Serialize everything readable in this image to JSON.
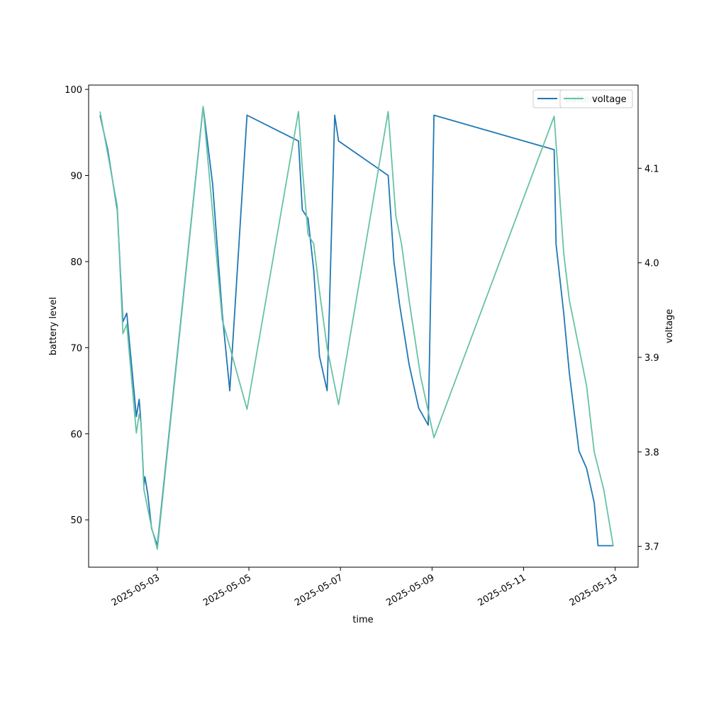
{
  "chart_data": {
    "type": "line",
    "xlabel": "time",
    "ylabel": "battery level",
    "y2label": "voltage",
    "xlim": [
      "2025-05-01T12:00",
      "2025-05-13T12:00"
    ],
    "ylim": [
      44.5,
      100.5
    ],
    "y2lim": [
      3.678,
      4.188
    ],
    "x_ticks": [
      "2025-05-03",
      "2025-05-05",
      "2025-05-07",
      "2025-05-09",
      "2025-05-11",
      "2025-05-13"
    ],
    "y_ticks": [
      50,
      60,
      70,
      80,
      90,
      100
    ],
    "y2_ticks": [
      3.7,
      3.8,
      3.9,
      4.0,
      4.1
    ],
    "y2_tick_labels": [
      "3.7",
      "3.8",
      "3.9",
      "4.0",
      "4.1"
    ],
    "grid": false,
    "legend_position": "top-right",
    "colors": {
      "battery": "#1f77b4",
      "voltage": "#66c2a5"
    },
    "series": [
      {
        "name": "battery",
        "axis": "left",
        "color": "#1f77b4",
        "x": [
          "2025-05-01T18:00",
          "2025-05-01T22:00",
          "2025-05-02T03:00",
          "2025-05-02T06:00",
          "2025-05-02T08:00",
          "2025-05-02T13:00",
          "2025-05-02T14:30",
          "2025-05-02T15:30",
          "2025-05-02T17:00",
          "2025-05-02T17:30",
          "2025-05-02T19:00",
          "2025-05-02T21:00",
          "2025-05-03T00:00",
          "2025-05-04T00:00",
          "2025-05-04T05:00",
          "2025-05-04T10:00",
          "2025-05-04T14:00",
          "2025-05-04T23:00",
          "2025-05-06T02:00",
          "2025-05-06T04:00",
          "2025-05-06T07:00",
          "2025-05-06T10:00",
          "2025-05-06T13:00",
          "2025-05-06T17:00",
          "2025-05-06T21:00",
          "2025-05-06T23:00",
          "2025-05-08T01:00",
          "2025-05-08T04:00",
          "2025-05-08T07:00",
          "2025-05-08T12:00",
          "2025-05-08T17:00",
          "2025-05-08T22:00",
          "2025-05-09T01:00",
          "2025-05-11T16:00",
          "2025-05-11T17:00",
          "2025-05-11T21:00",
          "2025-05-12T00:00",
          "2025-05-12T05:00",
          "2025-05-12T09:00",
          "2025-05-12T13:00",
          "2025-05-12T15:00",
          "2025-05-12T19:00",
          "2025-05-12T23:00"
        ],
        "values": [
          97,
          93,
          86,
          73,
          74,
          62,
          64,
          61,
          54,
          55,
          53,
          49,
          47,
          98,
          89,
          74,
          65,
          97,
          94,
          86,
          85,
          79,
          69,
          65,
          97,
          94,
          90,
          80,
          75,
          68,
          63,
          61,
          97,
          93,
          82,
          74,
          67,
          58,
          56,
          52,
          47,
          47,
          47
        ]
      },
      {
        "name": "voltage",
        "axis": "right",
        "color": "#66c2a5",
        "x": [
          "2025-05-01T18:00",
          "2025-05-02T03:00",
          "2025-05-02T06:00",
          "2025-05-02T08:00",
          "2025-05-02T13:00",
          "2025-05-02T14:30",
          "2025-05-02T15:30",
          "2025-05-02T17:00",
          "2025-05-02T19:00",
          "2025-05-02T21:00",
          "2025-05-03T00:00",
          "2025-05-04T00:00",
          "2025-05-04T10:00",
          "2025-05-04T23:00",
          "2025-05-06T02:00",
          "2025-05-06T04:00",
          "2025-05-06T07:00",
          "2025-05-06T10:00",
          "2025-05-06T13:00",
          "2025-05-06T17:00",
          "2025-05-06T23:00",
          "2025-05-08T01:00",
          "2025-05-08T05:00",
          "2025-05-08T08:00",
          "2025-05-08T12:00",
          "2025-05-08T18:00",
          "2025-05-09T01:00",
          "2025-05-11T16:00",
          "2025-05-11T21:00",
          "2025-05-12T00:00",
          "2025-05-12T05:00",
          "2025-05-12T09:00",
          "2025-05-12T13:00",
          "2025-05-12T18:00",
          "2025-05-12T23:00"
        ],
        "values": [
          4.16,
          4.06,
          3.925,
          3.935,
          3.82,
          3.84,
          3.83,
          3.76,
          3.74,
          3.72,
          3.697,
          4.165,
          3.94,
          3.845,
          4.16,
          4.1,
          4.03,
          4.02,
          3.97,
          3.91,
          3.85,
          4.16,
          4.05,
          4.02,
          3.96,
          3.88,
          3.815,
          4.155,
          4.01,
          3.96,
          3.91,
          3.87,
          3.8,
          3.76,
          3.7
        ]
      }
    ],
    "legend": [
      "battery",
      "voltage"
    ]
  }
}
